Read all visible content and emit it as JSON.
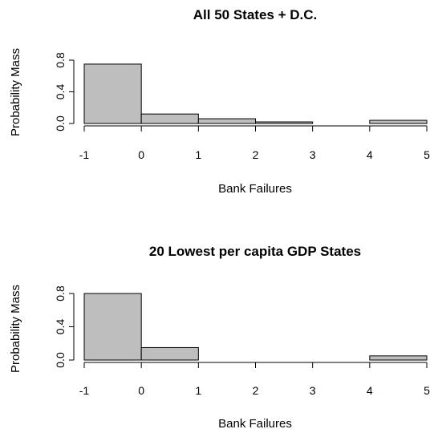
{
  "chart_data": [
    {
      "type": "bar",
      "title": "All 50 States + D.C.",
      "xlabel": "Bank Failures",
      "ylabel": "Probability Mass",
      "bin_edges": [
        -1,
        0,
        1,
        2,
        3,
        4,
        5
      ],
      "values": [
        0.75,
        0.12,
        0.06,
        0.02,
        0.0,
        0.04
      ],
      "xlim": [
        -1,
        5
      ],
      "ylim": [
        0,
        0.8
      ],
      "x_ticks": [
        "-1",
        "0",
        "1",
        "2",
        "3",
        "4",
        "5"
      ],
      "y_ticks": [
        "0.0",
        "0.4",
        "0.8"
      ],
      "bar_color": "#bebebe",
      "grid": false
    },
    {
      "type": "bar",
      "title": "20 Lowest per capita GDP States",
      "xlabel": "Bank Failures",
      "ylabel": "Probability Mass",
      "bin_edges": [
        -1,
        0,
        1,
        2,
        3,
        4,
        5
      ],
      "values": [
        0.8,
        0.15,
        0.0,
        0.0,
        0.0,
        0.05
      ],
      "xlim": [
        -1,
        5
      ],
      "ylim": [
        0,
        0.8
      ],
      "x_ticks": [
        "-1",
        "0",
        "1",
        "2",
        "3",
        "4",
        "5"
      ],
      "y_ticks": [
        "0.0",
        "0.4",
        "0.8"
      ],
      "bar_color": "#bebebe",
      "grid": false
    }
  ]
}
